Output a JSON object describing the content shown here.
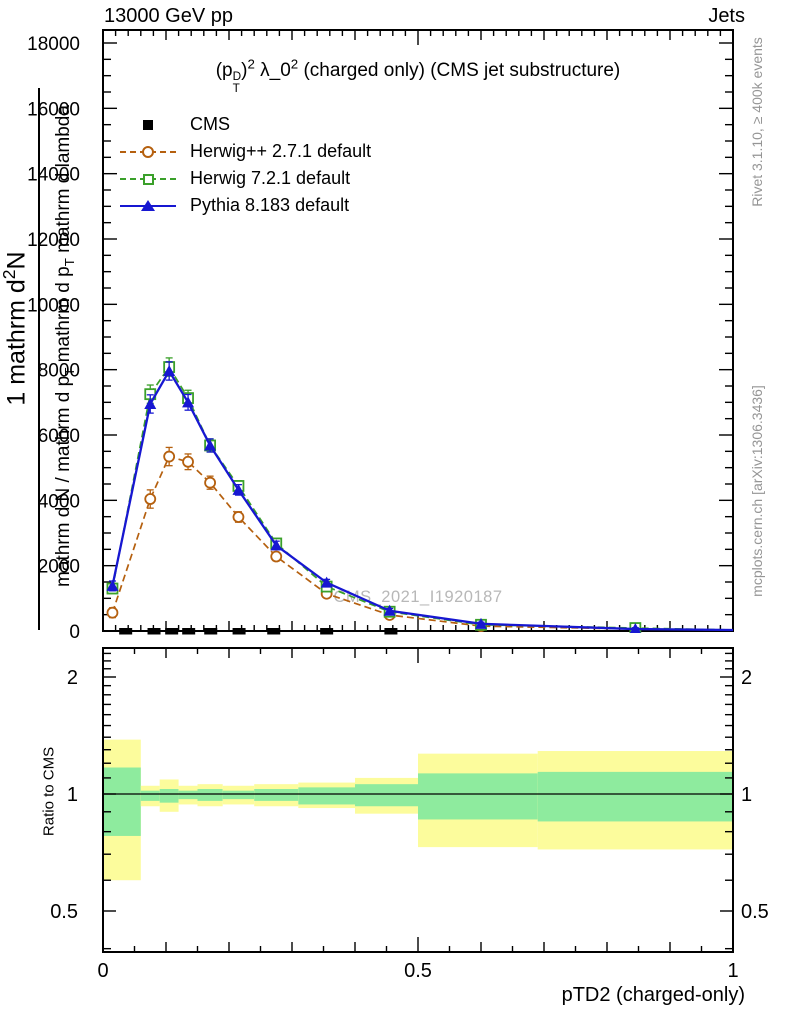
{
  "header": {
    "left": "13000 GeV pp",
    "right": "Jets"
  },
  "title_rich": [
    {
      "t": "(p"
    },
    {
      "stack": [
        "D",
        "T"
      ]
    },
    {
      "t": ")"
    },
    {
      "t": "2",
      "s": "sup"
    },
    {
      "t": " λ_0"
    },
    {
      "t": "2",
      "s": "sup"
    },
    {
      "t": " (charged only) (CMS jet substructure)"
    }
  ],
  "legend": {
    "items": [
      {
        "label": "CMS",
        "marker": "black-filled-square"
      },
      {
        "label": "Herwig++ 2.7.1 default",
        "marker": "orange-dashed-open-circle"
      },
      {
        "label": "Herwig 7.2.1 default",
        "marker": "green-dashed-open-square"
      },
      {
        "label": "Pythia 8.183 default",
        "marker": "blue-solid-filled-triangle"
      }
    ]
  },
  "watermark": "CMS_2021_I1920187",
  "credits": {
    "rivet": "Rivet 3.1.10, ≥ 400k events",
    "mcplots": "mcplots.cern.ch [arXiv:1306.3436]"
  },
  "ylabel": {
    "numerator_rich": [
      {
        "t": "1 mathrm d"
      },
      {
        "t": "2",
        "s": "sup"
      },
      {
        "t": "N"
      }
    ],
    "denominator_rich": [
      {
        "t": "mathrm d N / mathrm d p"
      },
      {
        "t": "T",
        "s": "sub"
      },
      {
        "t": " mathrm d p"
      },
      {
        "t": "T",
        "s": "sub"
      },
      {
        "t": " mathrm d lambda"
      }
    ]
  },
  "ratio_label": "Ratio to CMS",
  "xaxis": {
    "title": "pTD2 (charged-only)",
    "tick_labels": [
      "0",
      "0.5",
      "1"
    ],
    "tick_values": [
      0,
      0.5,
      1
    ]
  },
  "yaxis": {
    "tick_labels": [
      "0",
      "2000",
      "4000",
      "6000",
      "8000",
      "10000",
      "12000",
      "14000",
      "16000",
      "18000"
    ],
    "tick_values": [
      0,
      2000,
      4000,
      6000,
      8000,
      10000,
      12000,
      14000,
      16000,
      18000
    ]
  },
  "ratio_axis": {
    "tick_labels": [
      "0.5",
      "1",
      "2"
    ],
    "tick_values": [
      0.5,
      1,
      2
    ]
  },
  "colors": {
    "cms": "#000000",
    "herwigpp": "#b5600f",
    "herwig7": "#3aa02a",
    "pythia": "#1717d1",
    "band_yellow": "#fcfc9c",
    "band_green": "#8eeb9e",
    "watermark": "#b8b8b8",
    "credit": "#959595"
  },
  "chart_data": {
    "type": "line",
    "title": "(p_T^D)^2 λ_0^2 (charged only) (CMS jet substructure)",
    "xlabel": "pTD2 (charged-only)",
    "ylabel": "1 mathrm d2N / mathrm d N / mathrm d p_T mathrm d p_T mathrm d lambda",
    "xlim": [
      0,
      1
    ],
    "ylim": [
      0,
      18400
    ],
    "x_major_ticks": [
      0,
      0.5,
      1
    ],
    "y_major_step": 2000,
    "y_minor_step": 500,
    "x": [
      0.015,
      0.075,
      0.105,
      0.135,
      0.17,
      0.215,
      0.275,
      0.355,
      0.455,
      0.6,
      0.845
    ],
    "err": [
      150,
      280,
      280,
      240,
      200,
      160,
      130,
      100,
      70,
      50,
      40
    ],
    "series": [
      {
        "name": "Herwig++ 2.7.1 default",
        "color_key": "herwigpp",
        "dash": true,
        "marker": "circle-open",
        "values": [
          560,
          4040,
          5340,
          5180,
          4540,
          3490,
          2280,
          1140,
          490,
          150,
          60
        ]
      },
      {
        "name": "Herwig 7.2.1 default",
        "color_key": "herwig7",
        "dash": true,
        "marker": "square-open",
        "values": [
          1300,
          7250,
          8080,
          7130,
          5680,
          4440,
          2680,
          1360,
          590,
          190,
          90
        ]
      },
      {
        "name": "Pythia 8.183 default",
        "color_key": "pythia",
        "dash": false,
        "marker": "triangle-filled",
        "values": [
          1380,
          6950,
          7960,
          7000,
          5680,
          4320,
          2620,
          1480,
          620,
          220,
          60
        ]
      }
    ],
    "cms_points": {
      "name": "CMS",
      "marker": "square-filled",
      "x": [
        0.036,
        0.081,
        0.109,
        0.136,
        0.171,
        0.216,
        0.271,
        0.355,
        0.457
      ],
      "values": [
        0,
        0,
        0,
        0,
        0,
        0,
        0,
        0,
        0
      ]
    },
    "ratio": {
      "ylabel": "Ratio to CMS",
      "scale": "log",
      "ylim": [
        0.39,
        2.36
      ],
      "tick_values": [
        0.5,
        1,
        2
      ],
      "bin_edges": [
        0,
        0.06,
        0.09,
        0.12,
        0.15,
        0.19,
        0.24,
        0.31,
        0.4,
        0.5,
        0.69,
        1.0
      ],
      "yellow_band": [
        [
          0.6,
          1.38
        ],
        [
          0.93,
          1.05
        ],
        [
          0.9,
          1.09
        ],
        [
          0.94,
          1.05
        ],
        [
          0.93,
          1.06
        ],
        [
          0.94,
          1.05
        ],
        [
          0.93,
          1.06
        ],
        [
          0.92,
          1.07
        ],
        [
          0.89,
          1.1
        ],
        [
          0.73,
          1.27
        ],
        [
          0.72,
          1.29
        ]
      ],
      "green_band": [
        [
          0.78,
          1.17
        ],
        [
          0.96,
          1.02
        ],
        [
          0.95,
          1.03
        ],
        [
          0.97,
          1.02
        ],
        [
          0.96,
          1.03
        ],
        [
          0.97,
          1.02
        ],
        [
          0.96,
          1.03
        ],
        [
          0.94,
          1.04
        ],
        [
          0.93,
          1.06
        ],
        [
          0.86,
          1.13
        ],
        [
          0.85,
          1.14
        ]
      ],
      "reference_line": 1
    }
  }
}
